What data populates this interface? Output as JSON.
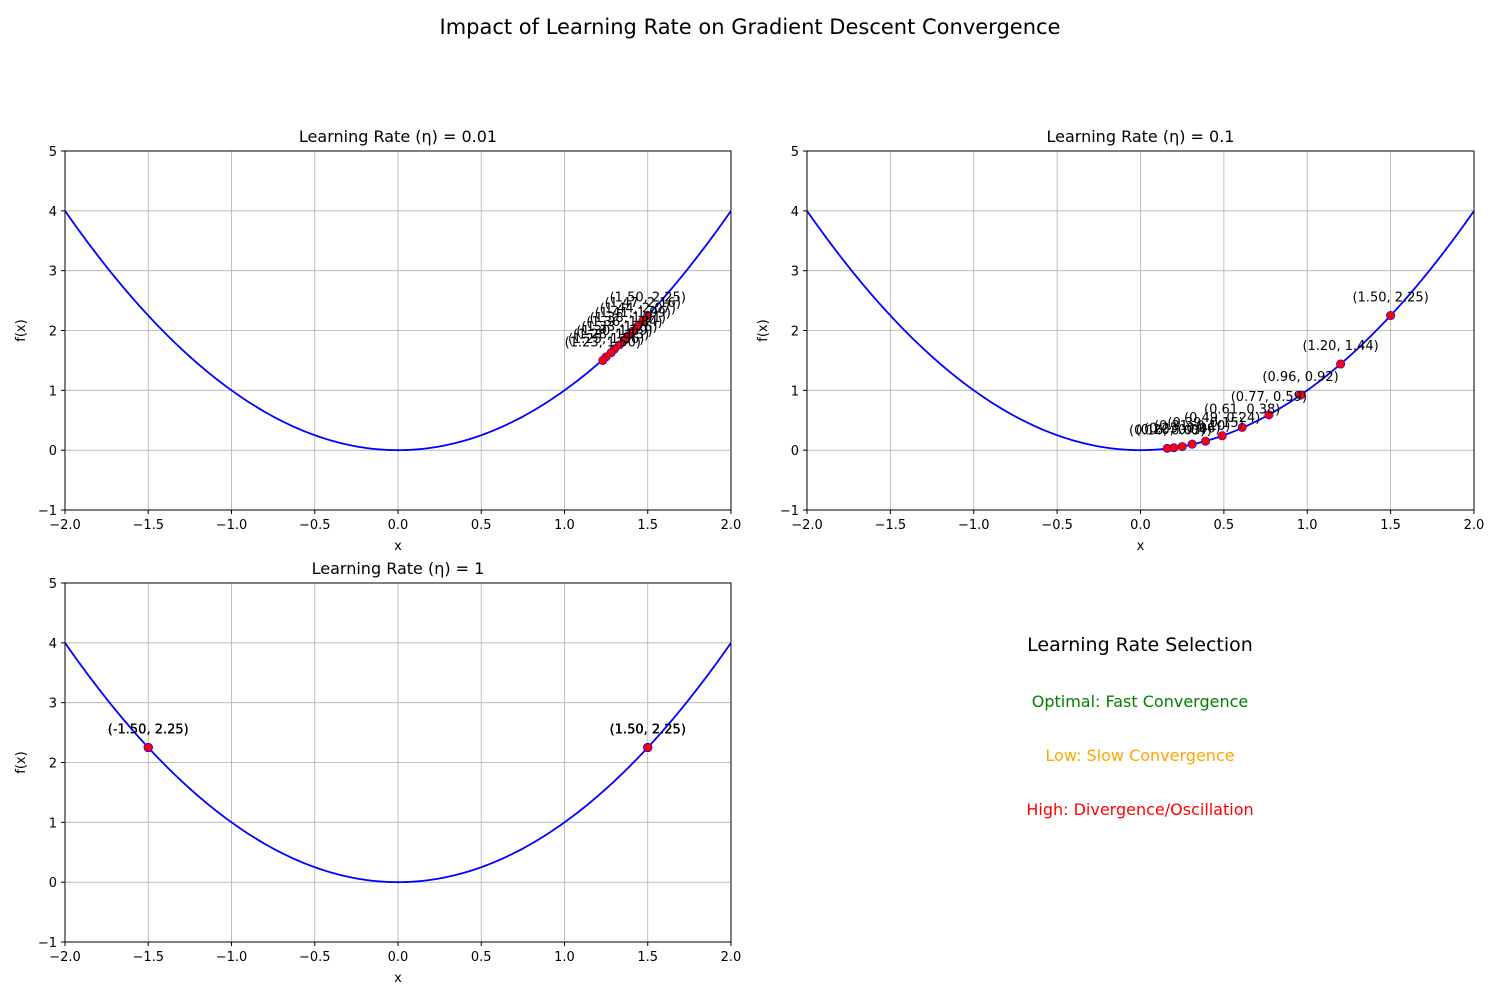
{
  "figure": {
    "title": "Impact of Learning Rate on Gradient Descent Convergence"
  },
  "legend_panel": {
    "title": "Learning Rate Selection",
    "items": [
      {
        "label": "Optimal: Fast Convergence",
        "color": "#008000"
      },
      {
        "label": "Low: Slow Convergence",
        "color": "#ffa500"
      },
      {
        "label": "High: Divergence/Oscillation",
        "color": "#ff0000"
      }
    ]
  },
  "colors": {
    "curve": "#0000ff",
    "point": "#ff0000",
    "grid": "#b0b0b0"
  },
  "chart_data": [
    {
      "type": "line",
      "title": "Learning Rate (η) = 0.01",
      "xlabel": "x",
      "ylabel": "f(x)",
      "xlim": [
        -2,
        2
      ],
      "ylim": [
        -1,
        5
      ],
      "xticks": [
        -2.0,
        -1.5,
        -1.0,
        -0.5,
        0.0,
        0.5,
        1.0,
        1.5,
        2.0
      ],
      "xtick_labels": [
        "−2.0",
        "−1.5",
        "−1.0",
        "−0.5",
        "0.0",
        "0.5",
        "1.0",
        "1.5",
        "2.0"
      ],
      "yticks": [
        -1,
        0,
        1,
        2,
        3,
        4,
        5
      ],
      "ytick_labels": [
        "−1",
        "0",
        "1",
        "2",
        "3",
        "4",
        "5"
      ],
      "grid": true,
      "function": "f(x) = x^2",
      "path": {
        "x": [
          1.5,
          1.47,
          1.44,
          1.41,
          1.38,
          1.36,
          1.33,
          1.3,
          1.28,
          1.25,
          1.23
        ],
        "y": [
          2.25,
          2.16,
          2.07,
          1.99,
          1.91,
          1.84,
          1.76,
          1.69,
          1.63,
          1.56,
          1.5
        ],
        "labels": [
          "(1.50, 2.25)",
          "(1.47, 2.16)",
          "(1.44, 2.07)",
          "(1.41, 1.99)",
          "(1.38, 1.91)",
          "(1.36, 1.84)",
          "(1.33, 1.76)",
          "(1.30, 1.69)",
          "(1.28, 1.63)",
          "(1.25, 1.56)",
          "(1.23, 1.50)"
        ]
      }
    },
    {
      "type": "line",
      "title": "Learning Rate (η) = 0.1",
      "xlabel": "x",
      "ylabel": "f(x)",
      "xlim": [
        -2,
        2
      ],
      "ylim": [
        -1,
        5
      ],
      "xticks": [
        -2.0,
        -1.5,
        -1.0,
        -0.5,
        0.0,
        0.5,
        1.0,
        1.5,
        2.0
      ],
      "xtick_labels": [
        "−2.0",
        "−1.5",
        "−1.0",
        "−0.5",
        "0.0",
        "0.5",
        "1.0",
        "1.5",
        "2.0"
      ],
      "yticks": [
        -1,
        0,
        1,
        2,
        3,
        4,
        5
      ],
      "ytick_labels": [
        "−1",
        "0",
        "1",
        "2",
        "3",
        "4",
        "5"
      ],
      "grid": true,
      "function": "f(x) = x^2",
      "path": {
        "x": [
          1.5,
          1.2,
          0.96,
          0.77,
          0.61,
          0.49,
          0.39,
          0.31,
          0.25,
          0.2,
          0.16
        ],
        "y": [
          2.25,
          1.44,
          0.92,
          0.59,
          0.38,
          0.24,
          0.15,
          0.1,
          0.06,
          0.04,
          0.03
        ],
        "labels": [
          "(1.50, 2.25)",
          "(1.20, 1.44)",
          "(0.96, 0.92)",
          "(0.77, 0.59)",
          "(0.61, 0.38)",
          "(0.49, 0.24)",
          "(0.39, 0.15)",
          "(0.31, 0.10)",
          "(0.25, 0.06)",
          "(0.20, 0.04)",
          "(0.16, 0.03)"
        ]
      }
    },
    {
      "type": "line",
      "title": "Learning Rate (η) = 1",
      "xlabel": "x",
      "ylabel": "f(x)",
      "xlim": [
        -2,
        2
      ],
      "ylim": [
        -1,
        5
      ],
      "xticks": [
        -2.0,
        -1.5,
        -1.0,
        -0.5,
        0.0,
        0.5,
        1.0,
        1.5,
        2.0
      ],
      "xtick_labels": [
        "−2.0",
        "−1.5",
        "−1.0",
        "−0.5",
        "0.0",
        "0.5",
        "1.0",
        "1.5",
        "2.0"
      ],
      "yticks": [
        -1,
        0,
        1,
        2,
        3,
        4,
        5
      ],
      "ytick_labels": [
        "−1",
        "0",
        "1",
        "2",
        "3",
        "4",
        "5"
      ],
      "grid": true,
      "function": "f(x) = x^2",
      "path": {
        "x": [
          1.5,
          -1.5,
          1.5,
          -1.5,
          1.5,
          -1.5,
          1.5,
          -1.5,
          1.5,
          -1.5,
          1.5
        ],
        "y": [
          2.25,
          2.25,
          2.25,
          2.25,
          2.25,
          2.25,
          2.25,
          2.25,
          2.25,
          2.25,
          2.25
        ],
        "labels": [
          "(1.50, 2.25)",
          "(-1.50, 2.25)",
          "(1.50, 2.25)",
          "(-1.50, 2.25)",
          "(1.50, 2.25)",
          "(-1.50, 2.25)",
          "(1.50, 2.25)",
          "(-1.50, 2.25)",
          "(1.50, 2.25)",
          "(-1.50, 2.25)",
          "(1.50, 2.25)"
        ]
      }
    }
  ]
}
